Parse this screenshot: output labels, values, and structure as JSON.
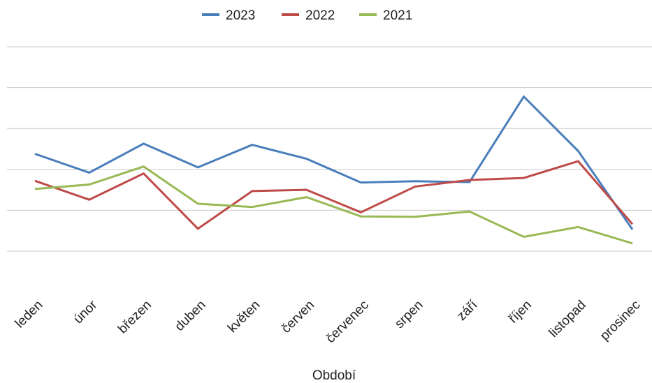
{
  "chart_data": {
    "type": "line",
    "title": "",
    "xlabel": "Období",
    "ylabel": "",
    "categories": [
      "leden",
      "únor",
      "březen",
      "duben",
      "květen",
      "červen",
      "červenec",
      "srpen",
      "září",
      "říjen",
      "listopad",
      "prosinec"
    ],
    "ylim": [
      0,
      5
    ],
    "y_ticks_shown": false,
    "grid": true,
    "legend_position": "top",
    "series": [
      {
        "name": "2023",
        "color": "#4a7ebb",
        "values": [
          2.38,
          1.92,
          2.63,
          2.05,
          2.6,
          2.26,
          1.68,
          1.71,
          1.69,
          3.78,
          2.45,
          0.53
        ]
      },
      {
        "name": "2022",
        "color": "#be4b48",
        "values": [
          1.72,
          1.26,
          1.9,
          0.55,
          1.47,
          1.5,
          0.95,
          1.58,
          1.74,
          1.79,
          2.2,
          0.66
        ]
      },
      {
        "name": "2021",
        "color": "#98b954",
        "values": [
          1.52,
          1.63,
          2.07,
          1.16,
          1.08,
          1.32,
          0.85,
          0.84,
          0.97,
          0.35,
          0.59,
          0.19
        ]
      }
    ]
  }
}
